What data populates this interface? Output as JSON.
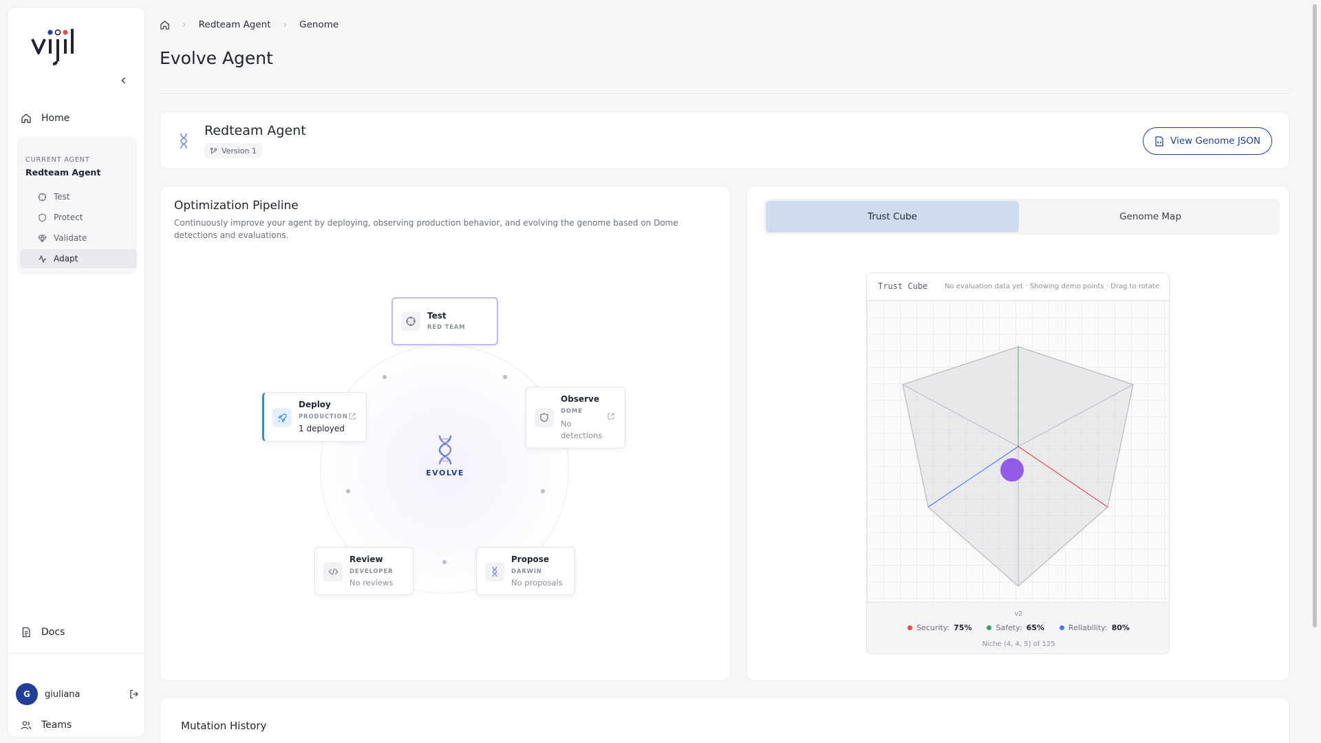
{
  "sidebar": {
    "logo_text": "vijil",
    "home_label": "Home",
    "current_agent_caption": "CURRENT AGENT",
    "current_agent_name": "Redteam Agent",
    "items": [
      {
        "label": "Test",
        "icon": "crosshair-icon"
      },
      {
        "label": "Protect",
        "icon": "shield-icon"
      },
      {
        "label": "Validate",
        "icon": "diamond-icon"
      },
      {
        "label": "Adapt",
        "icon": "activity-icon",
        "active": true
      }
    ],
    "docs_label": "Docs",
    "user": {
      "initial": "G",
      "name": "giuliana"
    },
    "teams_label": "Teams"
  },
  "breadcrumb": [
    "Redteam Agent",
    "Genome"
  ],
  "page_title": "Evolve Agent",
  "agent_card": {
    "name": "Redteam Agent",
    "version": "Version 1",
    "genome_button": "View Genome JSON"
  },
  "pipeline": {
    "title": "Optimization Pipeline",
    "description": "Continuously improve your agent by deploying, observing production behavior, and evolving the genome based on Dome detections and evaluations.",
    "center_label": "EVOLVE",
    "nodes": {
      "test": {
        "name": "Test",
        "sub": "RED TEAM"
      },
      "deploy": {
        "name": "Deploy",
        "sub": "PRODUCTION",
        "status": "1 deployed"
      },
      "observe": {
        "name": "Observe",
        "sub": "DOME",
        "status": "No detections"
      },
      "review": {
        "name": "Review",
        "sub": "DEVELOPER",
        "status": "No reviews"
      },
      "propose": {
        "name": "Propose",
        "sub": "DARWIN",
        "status": "No proposals"
      }
    }
  },
  "trust_panel": {
    "tabs": [
      "Trust Cube",
      "Genome Map"
    ],
    "active_tab": "Trust Cube",
    "cube_title": "Trust Cube",
    "cube_note": "No evaluation data yet · Showing demo points · Drag to rotate",
    "version": "v2",
    "legend": [
      {
        "label": "Security:",
        "value": "75%",
        "color": "#e5484d"
      },
      {
        "label": "Safety:",
        "value": "65%",
        "color": "#30a46c"
      },
      {
        "label": "Reliability:",
        "value": "80%",
        "color": "#3e7bfa"
      }
    ],
    "niche": "Niche (4, 4, 5) of 125"
  },
  "mutation_history": {
    "title": "Mutation History"
  },
  "colors": {
    "accent": "#1f3f9a",
    "active_tab": "#cfdcef",
    "point": "#8b4ee8"
  }
}
